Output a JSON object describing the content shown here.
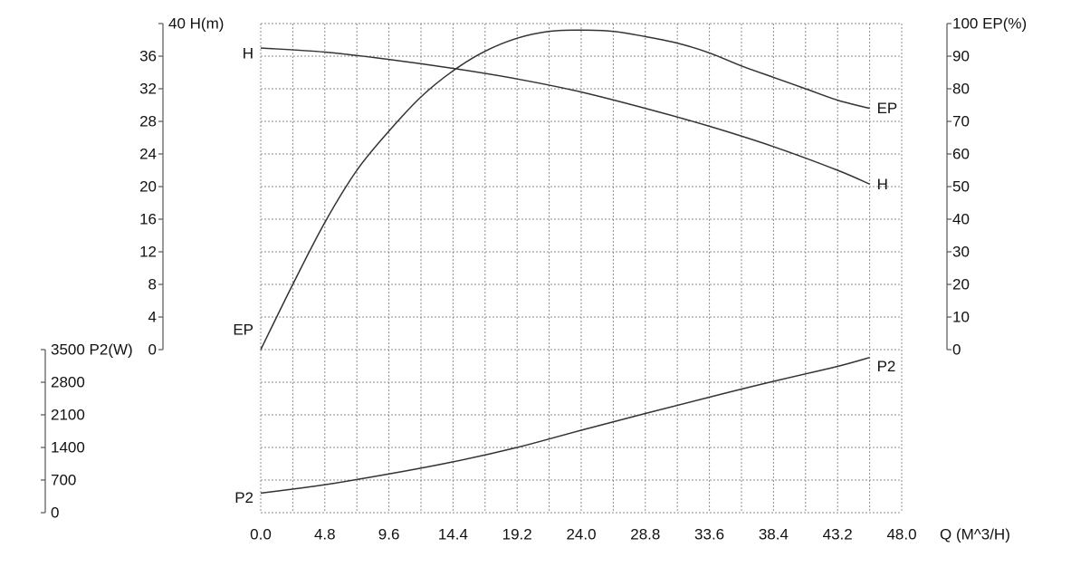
{
  "chart_data": {
    "type": "line",
    "x_axis": {
      "title": "Q (M^3/H)",
      "ticks": [
        "0.0",
        "4.8",
        "9.6",
        "14.4",
        "19.2",
        "24.0",
        "28.8",
        "33.6",
        "38.4",
        "43.2",
        "48.0"
      ],
      "range": [
        0,
        48
      ]
    },
    "h_axis": {
      "title": "40 H(m)",
      "ticks": [
        "0",
        "4",
        "8",
        "12",
        "16",
        "20",
        "24",
        "28",
        "32",
        "36"
      ],
      "range": [
        0,
        40
      ]
    },
    "ep_axis": {
      "title": "100 EP(%)",
      "ticks": [
        "0",
        "10",
        "20",
        "30",
        "40",
        "50",
        "60",
        "70",
        "80",
        "90"
      ],
      "range": [
        0,
        100
      ]
    },
    "p2_axis": {
      "title": "3500 P2(W)",
      "ticks": [
        "0",
        "700",
        "1400",
        "2100",
        "2800"
      ],
      "range": [
        0,
        3500
      ]
    },
    "grid": true,
    "series": [
      {
        "name": "H",
        "end_label": "H",
        "axis": "h",
        "color": "#333333",
        "points": [
          [
            0,
            37
          ],
          [
            4.8,
            36.5
          ],
          [
            9.6,
            35.6
          ],
          [
            14.4,
            34.5
          ],
          [
            19.2,
            33.2
          ],
          [
            24,
            31.6
          ],
          [
            28.8,
            29.6
          ],
          [
            33.6,
            27.4
          ],
          [
            38.4,
            24.9
          ],
          [
            43.2,
            22
          ],
          [
            45.6,
            20.3
          ]
        ]
      },
      {
        "name": "EP",
        "end_label": "EP",
        "axis": "ep",
        "color": "#333333",
        "points": [
          [
            0,
            0
          ],
          [
            2.4,
            20
          ],
          [
            4.8,
            39
          ],
          [
            7.2,
            55
          ],
          [
            9.6,
            67
          ],
          [
            12,
            77.5
          ],
          [
            14.4,
            85.5
          ],
          [
            16.8,
            91.5
          ],
          [
            19.2,
            95.5
          ],
          [
            21.6,
            97.6
          ],
          [
            24,
            98
          ],
          [
            26.4,
            97.6
          ],
          [
            28.8,
            96
          ],
          [
            31.2,
            94
          ],
          [
            33.6,
            91
          ],
          [
            36,
            87
          ],
          [
            38.4,
            83.5
          ],
          [
            40.8,
            80
          ],
          [
            43.2,
            76.5
          ],
          [
            45.6,
            74
          ]
        ]
      },
      {
        "name": "P2",
        "end_label": "P2",
        "axis": "p2",
        "color": "#333333",
        "points": [
          [
            0,
            420
          ],
          [
            4.8,
            600
          ],
          [
            9.6,
            830
          ],
          [
            14.4,
            1090
          ],
          [
            19.2,
            1400
          ],
          [
            24,
            1770
          ],
          [
            28.8,
            2130
          ],
          [
            33.6,
            2480
          ],
          [
            38.4,
            2820
          ],
          [
            43.2,
            3140
          ],
          [
            45.6,
            3330
          ]
        ]
      }
    ]
  }
}
